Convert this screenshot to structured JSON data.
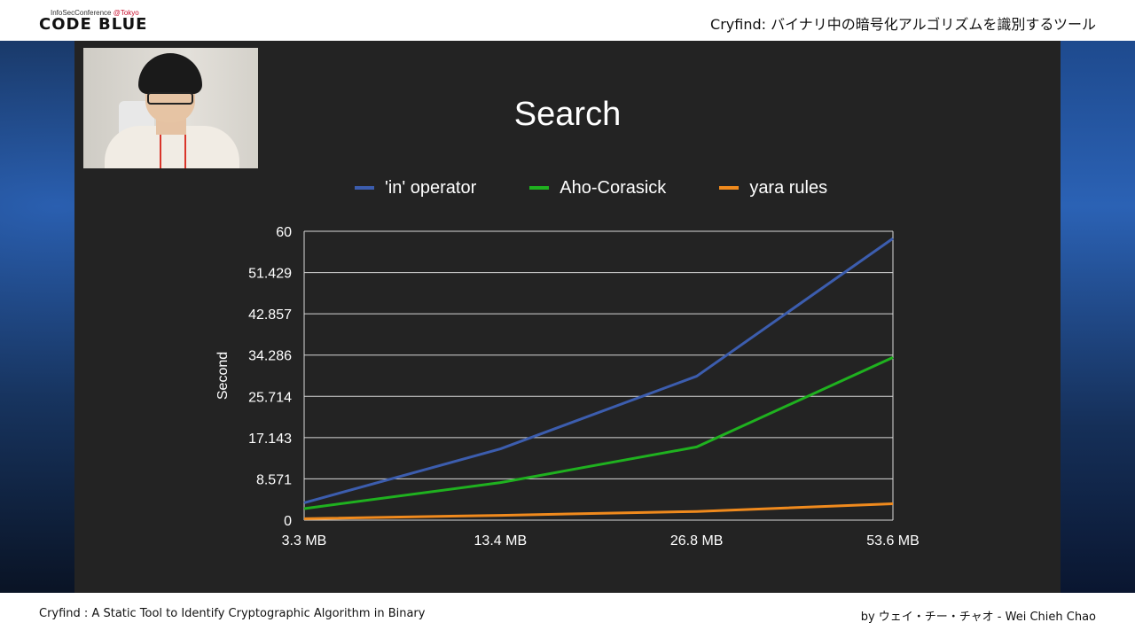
{
  "header": {
    "logo_small_prefix": "InfoSecConference ",
    "logo_small_accent": "@Tokyo",
    "logo_main": "CODE BLUE",
    "talk_title": "Cryfind: バイナリ中の暗号化アルゴリズムを識別するツール"
  },
  "footer": {
    "left": "Cryfind : A Static Tool to Identify Cryptographic Algorithm in Binary",
    "right": "by ウェイ・チー・チャオ - Wei Chieh Chao"
  },
  "slide": {
    "title": "Search"
  },
  "colors": {
    "accent_red": "#c8102e",
    "series_in": "#3c5dae",
    "series_aho": "#1fb11f",
    "series_yara": "#f08a1d"
  },
  "chart_data": {
    "type": "line",
    "title": "Search",
    "xlabel": "",
    "ylabel": "Second",
    "categories": [
      "3.3 MB",
      "13.4 MB",
      "26.8 MB",
      "53.6 MB"
    ],
    "y_ticks": [
      "0",
      "8.571",
      "17.143",
      "25.714",
      "34.286",
      "42.857",
      "51.429",
      "60"
    ],
    "ylim": [
      0,
      60
    ],
    "grid": true,
    "legend_position": "top",
    "series": [
      {
        "name": "'in' operator",
        "color": "#3c5dae",
        "values": [
          3.6,
          14.8,
          29.9,
          58.5
        ]
      },
      {
        "name": "Aho-Corasick",
        "color": "#1fb11f",
        "values": [
          2.4,
          7.8,
          15.2,
          33.8
        ]
      },
      {
        "name": "yara rules",
        "color": "#f08a1d",
        "values": [
          0.3,
          1.0,
          1.8,
          3.4
        ]
      }
    ]
  }
}
